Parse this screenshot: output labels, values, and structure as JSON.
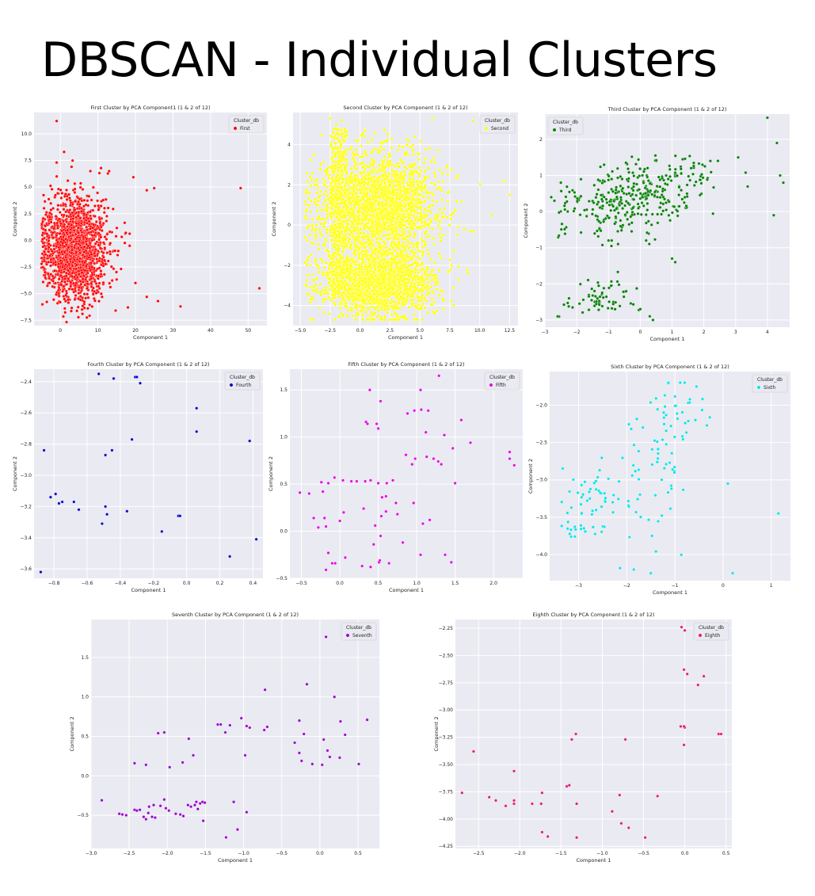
{
  "page_title": "DBSCAN - Individual Clusters",
  "chart_data": [
    {
      "id": "first",
      "type": "scatter",
      "title": "First Cluster by PCA Component1 (1 & 2 of 12)",
      "xlabel": "Component 1",
      "ylabel": "Component 2",
      "legend_title": "Cluster_db",
      "series_name": "First",
      "color": "#ff0000",
      "xlim": [
        -7,
        55
      ],
      "ylim": [
        -8,
        12
      ],
      "xticks": [
        0,
        10,
        20,
        30,
        40,
        50
      ],
      "yticks": [
        -7.5,
        -5.0,
        -2.5,
        0.0,
        2.5,
        5.0,
        7.5,
        10.0
      ],
      "generated": {
        "count": 1700,
        "mode": "blob",
        "seed": 11,
        "cx": 4,
        "cy": -0.8,
        "sx": 4.2,
        "sy": 2.4
      },
      "points": [
        [
          -1,
          11.2
        ],
        [
          1,
          8.3
        ],
        [
          3,
          6.9
        ],
        [
          2,
          5.6
        ],
        [
          8,
          6.5
        ],
        [
          13,
          6.5
        ],
        [
          -1,
          7.3
        ],
        [
          23,
          4.7
        ],
        [
          25,
          4.9
        ],
        [
          48,
          4.9
        ],
        [
          53,
          -4.5
        ],
        [
          32,
          -6.2
        ],
        [
          23,
          -5.3
        ],
        [
          26,
          -5.7
        ],
        [
          18,
          -6.3
        ],
        [
          -4,
          -3.5
        ],
        [
          20,
          -4.0
        ]
      ]
    },
    {
      "id": "second",
      "type": "scatter",
      "title": "Second Cluster by PCA Component (1 & 2 of 12)",
      "xlabel": "Component 1",
      "ylabel": "Component 2",
      "legend_title": "Cluster_db",
      "series_name": "Second",
      "color": "#ffff00",
      "xlim": [
        -5.6,
        13.2
      ],
      "ylim": [
        -5.0,
        5.6
      ],
      "xticks": [
        -5.0,
        -2.5,
        0.0,
        2.5,
        5.0,
        7.5,
        10.0,
        12.5
      ],
      "yticks": [
        -4,
        -2,
        0,
        2,
        4
      ],
      "generated": {
        "count": 4000,
        "mode": "yellow",
        "seed": 22
      },
      "points": [
        [
          -2.5,
          5.3
        ],
        [
          -1.5,
          5.2
        ],
        [
          -2.0,
          5.0
        ],
        [
          12,
          2.2
        ],
        [
          12.5,
          1.5
        ],
        [
          11,
          0.5
        ],
        [
          -4,
          0
        ],
        [
          -3.5,
          1.2
        ]
      ]
    },
    {
      "id": "third",
      "type": "scatter",
      "title": "Third Cluster by PCA Component (1 & 2 of 12)",
      "xlabel": "Component 1",
      "ylabel": "Component 2",
      "legend_title": "Cluster_db",
      "series_name": "Third",
      "color": "#008000",
      "xlim": [
        -3.0,
        4.7
      ],
      "ylim": [
        -3.2,
        2.7
      ],
      "xticks": [
        -3,
        -2,
        -1,
        0,
        1,
        2,
        3,
        4
      ],
      "yticks": [
        -3,
        -2,
        -1,
        0,
        1,
        2
      ],
      "generated": {
        "count": 430,
        "mode": "third",
        "seed": 33
      },
      "points": [
        [
          -2.7,
          0.3
        ],
        [
          -2.5,
          0.8
        ],
        [
          -2.8,
          0.4
        ],
        [
          4.0,
          2.6
        ],
        [
          4.3,
          1.9
        ],
        [
          4.4,
          1.0
        ],
        [
          4.5,
          0.8
        ],
        [
          4.2,
          -0.1
        ],
        [
          1.0,
          -1.3
        ],
        [
          1.1,
          -1.4
        ],
        [
          -1.0,
          -0.8
        ],
        [
          -0.9,
          -0.8
        ],
        [
          -0.7,
          -0.9
        ],
        [
          0.3,
          -2.9
        ],
        [
          0.4,
          -3.0
        ],
        [
          0.0,
          -2.7
        ]
      ]
    },
    {
      "id": "fourth",
      "type": "scatter",
      "title": "Fourth Cluster by PCA Component (1 & 2 of 12)",
      "xlabel": "Component 1",
      "ylabel": "Component 2",
      "legend_title": "Cluster_db",
      "series_name": "Fourth",
      "color": "#0000cc",
      "xlim": [
        -0.92,
        0.46
      ],
      "ylim": [
        -3.66,
        -2.32
      ],
      "xticks": [
        -0.8,
        -0.6,
        -0.4,
        -0.2,
        0.0,
        0.2,
        0.4
      ],
      "yticks": [
        -2.4,
        -2.6,
        -2.8,
        -3.0,
        -3.2,
        -3.4,
        -3.6
      ],
      "points": [
        [
          -0.53,
          -2.35
        ],
        [
          -0.44,
          -2.38
        ],
        [
          -0.31,
          -2.37
        ],
        [
          -0.3,
          -2.37
        ],
        [
          -0.28,
          -2.41
        ],
        [
          0.06,
          -2.57
        ],
        [
          0.06,
          -2.72
        ],
        [
          -0.86,
          -2.84
        ],
        [
          -0.49,
          -2.87
        ],
        [
          -0.45,
          -2.84
        ],
        [
          -0.33,
          -2.77
        ],
        [
          0.38,
          -2.78
        ],
        [
          -0.82,
          -3.14
        ],
        [
          -0.79,
          -3.12
        ],
        [
          -0.77,
          -3.18
        ],
        [
          -0.75,
          -3.17
        ],
        [
          -0.68,
          -3.17
        ],
        [
          -0.65,
          -3.22
        ],
        [
          -0.49,
          -3.2
        ],
        [
          -0.48,
          -3.25
        ],
        [
          -0.51,
          -3.31
        ],
        [
          -0.36,
          -3.23
        ],
        [
          -0.15,
          -3.36
        ],
        [
          -0.05,
          -3.26
        ],
        [
          -0.04,
          -3.26
        ],
        [
          0.26,
          -3.52
        ],
        [
          0.42,
          -3.41
        ],
        [
          -0.88,
          -3.62
        ]
      ]
    },
    {
      "id": "fifth",
      "type": "scatter",
      "title": "Fifth Cluster by PCA Component (1 & 2 of 12)",
      "xlabel": "Component 1",
      "ylabel": "Component 2",
      "legend_title": "Cluster_db",
      "series_name": "Fifth",
      "color": "#e600e6",
      "xlim": [
        -0.65,
        2.38
      ],
      "ylim": [
        -0.5,
        1.72
      ],
      "xticks": [
        -0.5,
        0.0,
        0.5,
        1.0,
        1.5,
        2.0
      ],
      "yticks": [
        -0.5,
        0.0,
        0.5,
        1.0,
        1.5
      ],
      "points": [
        [
          1.29,
          1.65
        ],
        [
          0.39,
          1.5
        ],
        [
          0.53,
          1.38
        ],
        [
          1.05,
          1.5
        ],
        [
          0.34,
          1.16
        ],
        [
          0.36,
          1.14
        ],
        [
          0.48,
          1.14
        ],
        [
          0.5,
          1.09
        ],
        [
          0.88,
          1.25
        ],
        [
          0.97,
          1.28
        ],
        [
          1.06,
          1.29
        ],
        [
          1.15,
          1.28
        ],
        [
          1.58,
          1.18
        ],
        [
          1.12,
          1.05
        ],
        [
          1.36,
          1.02
        ],
        [
          0.86,
          0.81
        ],
        [
          1.47,
          0.88
        ],
        [
          1.7,
          0.94
        ],
        [
          2.21,
          0.84
        ],
        [
          2.21,
          0.77
        ],
        [
          2.27,
          0.7
        ],
        [
          0.98,
          0.77
        ],
        [
          1.13,
          0.79
        ],
        [
          1.22,
          0.77
        ],
        [
          1.28,
          0.74
        ],
        [
          0.94,
          0.71
        ],
        [
          1.32,
          0.71
        ],
        [
          -0.24,
          0.52
        ],
        [
          -0.15,
          0.51
        ],
        [
          -0.07,
          0.57
        ],
        [
          0.04,
          0.54
        ],
        [
          0.15,
          0.53
        ],
        [
          0.22,
          0.53
        ],
        [
          0.33,
          0.53
        ],
        [
          0.4,
          0.54
        ],
        [
          0.5,
          0.51
        ],
        [
          0.61,
          0.51
        ],
        [
          0.69,
          0.54
        ],
        [
          1.5,
          0.51
        ],
        [
          -0.52,
          0.41
        ],
        [
          -0.4,
          0.4
        ],
        [
          -0.22,
          0.42
        ],
        [
          -0.2,
          0.14
        ],
        [
          -0.18,
          0.05
        ],
        [
          0.55,
          0.36
        ],
        [
          0.6,
          0.37
        ],
        [
          0.31,
          0.24
        ],
        [
          0.05,
          0.2
        ],
        [
          0.73,
          0.3
        ],
        [
          0.96,
          0.3
        ],
        [
          0.75,
          0.18
        ],
        [
          0.54,
          0.16
        ],
        [
          0.6,
          0.21
        ],
        [
          0.46,
          0.06
        ],
        [
          -0.34,
          0.14
        ],
        [
          -0.28,
          0.04
        ],
        [
          0.0,
          0.11
        ],
        [
          1.08,
          0.08
        ],
        [
          0.53,
          -0.05
        ],
        [
          1.17,
          0.12
        ],
        [
          0.44,
          -0.14
        ],
        [
          0.82,
          -0.12
        ],
        [
          0.07,
          -0.28
        ],
        [
          -0.15,
          -0.23
        ],
        [
          -0.1,
          -0.34
        ],
        [
          -0.06,
          -0.34
        ],
        [
          -0.18,
          -0.41
        ],
        [
          0.52,
          -0.31
        ],
        [
          0.29,
          -0.37
        ],
        [
          0.4,
          -0.38
        ],
        [
          0.51,
          -0.33
        ],
        [
          0.64,
          -0.34
        ],
        [
          1.05,
          -0.25
        ],
        [
          1.37,
          -0.25
        ],
        [
          1.45,
          -0.33
        ]
      ]
    },
    {
      "id": "sixth",
      "type": "scatter",
      "title": "Sixth Cluster by PCA Component (1 & 2 of 12)",
      "xlabel": "Component 1",
      "ylabel": "Component 2",
      "legend_title": "Cluster_db",
      "series_name": "Sixth",
      "color": "#00e6e6",
      "xlim": [
        -3.6,
        1.4
      ],
      "ylim": [
        -4.35,
        -1.55
      ],
      "xticks": [
        -3,
        -2,
        -1,
        0,
        1
      ],
      "yticks": [
        -2.0,
        -2.5,
        -3.0,
        -3.5,
        -4.0
      ],
      "generated": {
        "count": 150,
        "mode": "sixth",
        "seed": 66
      },
      "points": [
        [
          -0.55,
          -1.75
        ],
        [
          0.2,
          -4.25
        ],
        [
          1.15,
          -3.45
        ],
        [
          0.1,
          -3.05
        ],
        [
          -1.5,
          -4.25
        ]
      ]
    },
    {
      "id": "seventh",
      "type": "scatter",
      "title": "Seventh Cluster by PCA Component (1 & 2 of 12)",
      "xlabel": "Component 1",
      "ylabel": "Component 2",
      "legend_title": "Cluster_db",
      "series_name": "Seventh",
      "color": "#9900cc",
      "xlim": [
        -3.0,
        0.78
      ],
      "ylim": [
        -0.92,
        1.98
      ],
      "xticks": [
        -3.0,
        -2.5,
        -2.0,
        -1.5,
        -1.0,
        -0.5,
        0.0,
        0.5
      ],
      "yticks": [
        1.5,
        1.0,
        0.5,
        0.0,
        -0.5
      ],
      "points": [
        [
          0.08,
          1.76
        ],
        [
          -0.72,
          1.09
        ],
        [
          -0.17,
          1.16
        ],
        [
          0.19,
          1.0
        ],
        [
          -1.34,
          0.65
        ],
        [
          -1.3,
          0.65
        ],
        [
          -1.18,
          0.64
        ],
        [
          -1.24,
          0.55
        ],
        [
          -0.96,
          0.63
        ],
        [
          -0.92,
          0.61
        ],
        [
          -1.03,
          0.73
        ],
        [
          -0.73,
          0.58
        ],
        [
          -0.69,
          0.62
        ],
        [
          0.27,
          0.69
        ],
        [
          0.62,
          0.71
        ],
        [
          -0.27,
          0.7
        ],
        [
          -0.21,
          0.53
        ],
        [
          -2.12,
          0.54
        ],
        [
          -2.04,
          0.55
        ],
        [
          -1.72,
          0.47
        ],
        [
          -0.33,
          0.42
        ],
        [
          0.05,
          0.46
        ],
        [
          0.33,
          0.52
        ],
        [
          -0.27,
          0.29
        ],
        [
          0.1,
          0.32
        ],
        [
          0.26,
          0.23
        ],
        [
          0.13,
          0.24
        ],
        [
          -0.98,
          0.26
        ],
        [
          -1.66,
          0.26
        ],
        [
          -2.43,
          0.16
        ],
        [
          -2.28,
          0.14
        ],
        [
          -1.97,
          0.11
        ],
        [
          -1.8,
          0.17
        ],
        [
          -0.24,
          0.19
        ],
        [
          -0.1,
          0.15
        ],
        [
          0.03,
          0.14
        ],
        [
          0.51,
          0.15
        ],
        [
          -2.86,
          -0.31
        ],
        [
          -2.63,
          -0.48
        ],
        [
          -2.59,
          -0.49
        ],
        [
          -2.54,
          -0.5
        ],
        [
          -2.43,
          -0.43
        ],
        [
          -2.4,
          -0.44
        ],
        [
          -2.36,
          -0.43
        ],
        [
          -2.31,
          -0.52
        ],
        [
          -2.28,
          -0.55
        ],
        [
          -2.25,
          -0.47
        ],
        [
          -2.2,
          -0.52
        ],
        [
          -2.16,
          -0.53
        ],
        [
          -2.24,
          -0.39
        ],
        [
          -2.18,
          -0.37
        ],
        [
          -2.09,
          -0.38
        ],
        [
          -2.02,
          -0.41
        ],
        [
          -2.04,
          -0.3
        ],
        [
          -1.98,
          -0.44
        ],
        [
          -1.89,
          -0.48
        ],
        [
          -1.83,
          -0.49
        ],
        [
          -1.79,
          -0.51
        ],
        [
          -1.73,
          -0.37
        ],
        [
          -1.69,
          -0.39
        ],
        [
          -1.64,
          -0.37
        ],
        [
          -1.62,
          -0.33
        ],
        [
          -1.57,
          -0.35
        ],
        [
          -1.54,
          -0.33
        ],
        [
          -1.51,
          -0.34
        ],
        [
          -1.6,
          -0.42
        ],
        [
          -1.53,
          -0.57
        ],
        [
          -1.13,
          -0.33
        ],
        [
          -0.96,
          -0.46
        ],
        [
          -1.08,
          -0.68
        ],
        [
          -1.23,
          -0.78
        ]
      ]
    },
    {
      "id": "eighth",
      "type": "scatter",
      "title": "Eighth Cluster by PCA Component (1 & 2 of 12)",
      "xlabel": "Component 1",
      "ylabel": "Component 2",
      "legend_title": "Cluster_db",
      "series_name": "Eighth",
      "color": "#e6177a",
      "xlim": [
        -2.78,
        0.57
      ],
      "ylim": [
        -4.27,
        -2.17
      ],
      "xticks": [
        -2.5,
        -2.0,
        -1.5,
        -1.0,
        -0.5,
        0.0,
        0.5
      ],
      "yticks": [
        -2.25,
        -2.5,
        -2.75,
        -3.0,
        -3.25,
        -3.5,
        -3.75,
        -4.0,
        -4.25
      ],
      "points": [
        [
          -0.04,
          -2.24
        ],
        [
          0.0,
          -2.27
        ],
        [
          -0.01,
          -2.63
        ],
        [
          0.03,
          -2.67
        ],
        [
          0.23,
          -2.69
        ],
        [
          0.16,
          -2.77
        ],
        [
          -0.05,
          -3.15
        ],
        [
          0.0,
          -3.16
        ],
        [
          -0.01,
          -3.15
        ],
        [
          -0.01,
          -3.32
        ],
        [
          0.41,
          -3.22
        ],
        [
          0.44,
          -3.22
        ],
        [
          -1.32,
          -3.22
        ],
        [
          -1.37,
          -3.27
        ],
        [
          -0.72,
          -3.27
        ],
        [
          -2.56,
          -3.38
        ],
        [
          -2.07,
          -3.56
        ],
        [
          -2.7,
          -3.76
        ],
        [
          -2.37,
          -3.8
        ],
        [
          -2.29,
          -3.83
        ],
        [
          -2.17,
          -3.88
        ],
        [
          -2.07,
          -3.83
        ],
        [
          -2.07,
          -3.86
        ],
        [
          -1.85,
          -3.86
        ],
        [
          -1.74,
          -3.86
        ],
        [
          -1.73,
          -3.76
        ],
        [
          -1.43,
          -3.7
        ],
        [
          -1.4,
          -3.69
        ],
        [
          -1.31,
          -3.86
        ],
        [
          -0.79,
          -3.78
        ],
        [
          -0.33,
          -3.79
        ],
        [
          -0.88,
          -3.93
        ],
        [
          -0.77,
          -4.04
        ],
        [
          -0.68,
          -4.08
        ],
        [
          -1.73,
          -4.12
        ],
        [
          -1.66,
          -4.16
        ],
        [
          -1.31,
          -4.17
        ],
        [
          -0.48,
          -4.17
        ]
      ]
    }
  ]
}
